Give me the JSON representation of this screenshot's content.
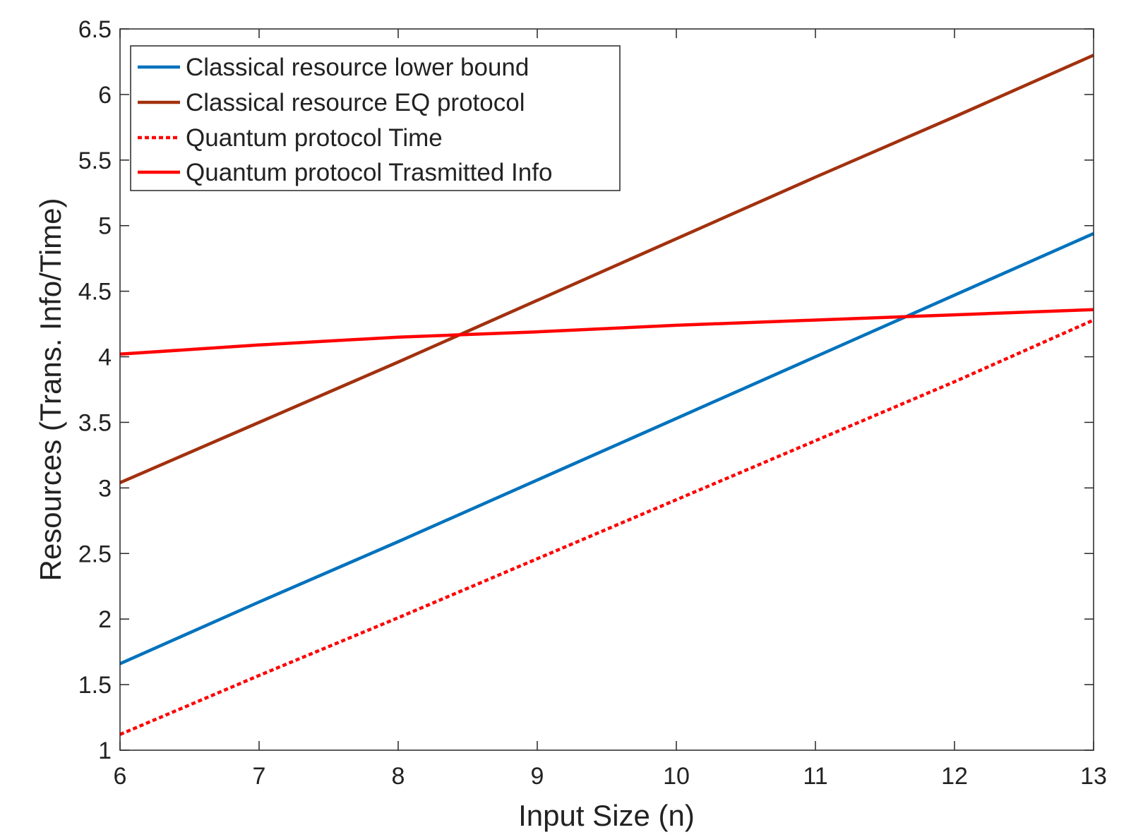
{
  "chart_data": {
    "type": "line",
    "title": "",
    "xlabel": "Input Size (n)",
    "ylabel": "Resources (Trans. Info/Time)",
    "xlim": [
      6,
      13
    ],
    "ylim": [
      1,
      6.5
    ],
    "xticks": [
      6,
      7,
      8,
      9,
      10,
      11,
      12,
      13
    ],
    "yticks": [
      1,
      1.5,
      2,
      2.5,
      3,
      3.5,
      4,
      4.5,
      5,
      5.5,
      6,
      6.5
    ],
    "xtick_labels": [
      "6",
      "7",
      "8",
      "9",
      "10",
      "11",
      "12",
      "13"
    ],
    "ytick_labels": [
      "1",
      "1.5",
      "2",
      "2.5",
      "3",
      "3.5",
      "4",
      "4.5",
      "5",
      "5.5",
      "6",
      "6.5"
    ],
    "grid": false,
    "legend_position": "top-left",
    "series": [
      {
        "name": "Classical resource lower bound",
        "color": "#0072BD",
        "dash": "solid",
        "x": [
          6,
          7,
          8,
          9,
          10,
          11,
          12,
          13
        ],
        "y": [
          1.66,
          2.13,
          2.59,
          3.06,
          3.53,
          4.0,
          4.47,
          4.94
        ]
      },
      {
        "name": "Classical resource EQ protocol",
        "color": "#A2310E",
        "dash": "solid",
        "x": [
          6,
          7,
          8,
          9,
          10,
          11,
          12,
          13
        ],
        "y": [
          3.04,
          3.5,
          3.96,
          4.43,
          4.9,
          5.37,
          5.83,
          6.3
        ]
      },
      {
        "name": "Quantum protocol Time",
        "color": "#FF0000",
        "dash": "dotted",
        "x": [
          6,
          7,
          8,
          9,
          10,
          11,
          12,
          13
        ],
        "y": [
          1.12,
          1.57,
          2.01,
          2.46,
          2.91,
          3.36,
          3.81,
          4.28
        ]
      },
      {
        "name": "Quantum protocol Trasmitted Info",
        "color": "#FF0000",
        "dash": "solid",
        "x": [
          6,
          7,
          8,
          9,
          10,
          11,
          12,
          13
        ],
        "y": [
          4.02,
          4.09,
          4.15,
          4.19,
          4.24,
          4.28,
          4.32,
          4.36
        ]
      }
    ]
  }
}
